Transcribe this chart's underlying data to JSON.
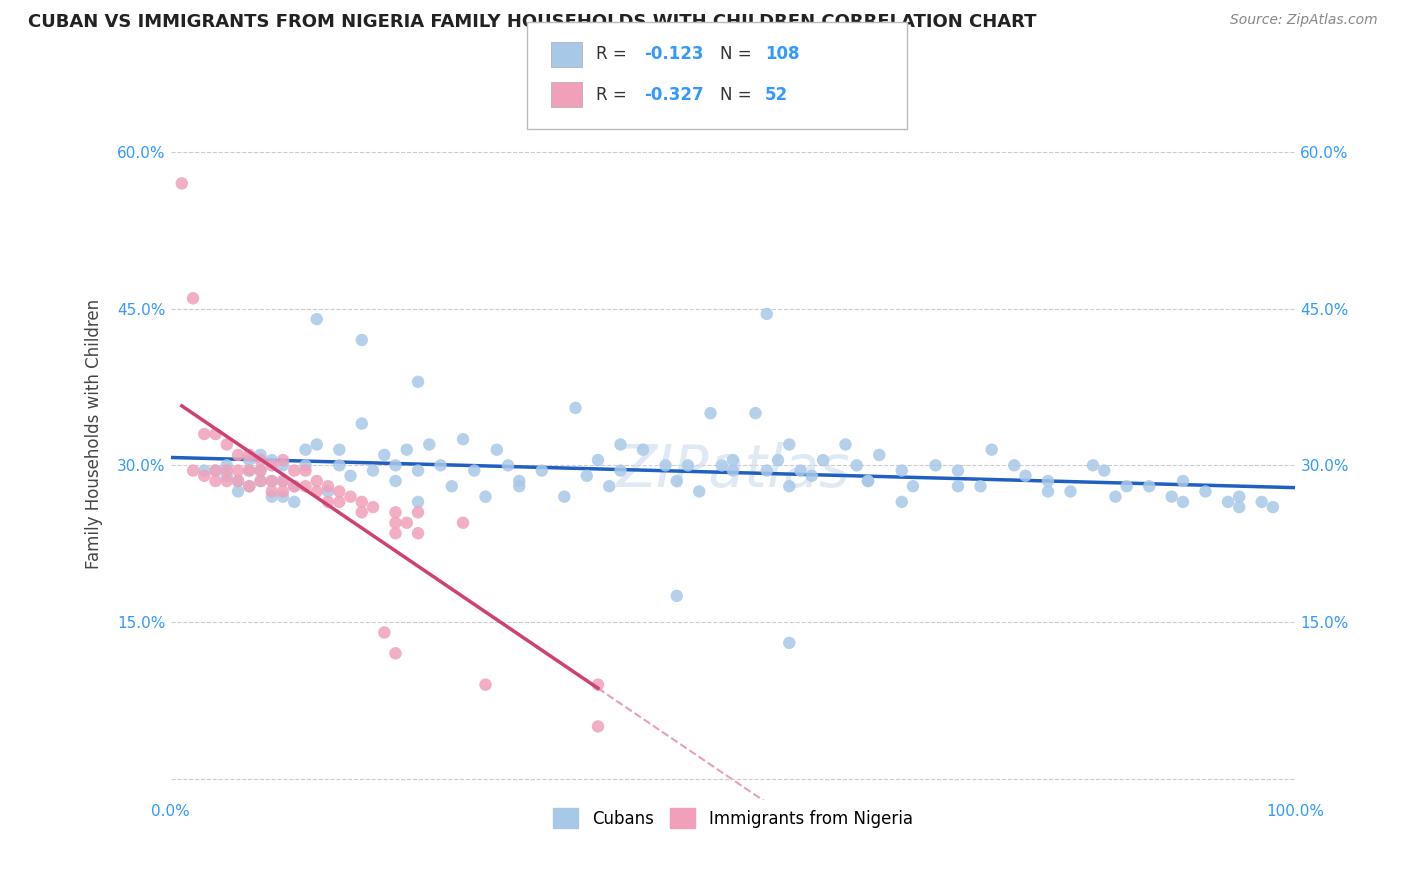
{
  "title": "CUBAN VS IMMIGRANTS FROM NIGERIA FAMILY HOUSEHOLDS WITH CHILDREN CORRELATION CHART",
  "source": "Source: ZipAtlas.com",
  "ylabel": "Family Households with Children",
  "xlim": [
    0.0,
    1.0
  ],
  "ylim": [
    -0.02,
    0.68
  ],
  "xticks": [
    0.0,
    0.1,
    0.2,
    0.3,
    0.4,
    0.5,
    0.6,
    0.7,
    0.8,
    0.9,
    1.0
  ],
  "xtick_labels": [
    "0.0%",
    "",
    "",
    "",
    "",
    "",
    "",
    "",
    "",
    "",
    "100.0%"
  ],
  "yticks": [
    0.0,
    0.15,
    0.3,
    0.45,
    0.6
  ],
  "ytick_labels": [
    "",
    "15.0%",
    "30.0%",
    "45.0%",
    "60.0%"
  ],
  "legend_cubans": "Cubans",
  "legend_nigeria": "Immigrants from Nigeria",
  "r_cubans": "-0.123",
  "n_cubans": "108",
  "r_nigeria": "-0.327",
  "n_nigeria": "52",
  "color_cubans": "#a8c8e8",
  "color_nigeria": "#f0a0b8",
  "line_color_cubans": "#2060c0",
  "line_color_nigeria": "#d04070",
  "line_color_dashed": "#e8a0b8",
  "watermark": "ZIPatlas",
  "cubans_x": [
    0.03,
    0.04,
    0.05,
    0.05,
    0.06,
    0.06,
    0.07,
    0.07,
    0.07,
    0.08,
    0.08,
    0.08,
    0.09,
    0.09,
    0.09,
    0.1,
    0.1,
    0.1,
    0.11,
    0.11,
    0.12,
    0.12,
    0.13,
    0.13,
    0.14,
    0.15,
    0.15,
    0.16,
    0.17,
    0.17,
    0.18,
    0.19,
    0.2,
    0.2,
    0.21,
    0.22,
    0.22,
    0.23,
    0.24,
    0.25,
    0.26,
    0.27,
    0.28,
    0.29,
    0.3,
    0.31,
    0.33,
    0.35,
    0.36,
    0.37,
    0.38,
    0.39,
    0.4,
    0.4,
    0.42,
    0.44,
    0.45,
    0.46,
    0.47,
    0.48,
    0.49,
    0.5,
    0.5,
    0.52,
    0.53,
    0.54,
    0.55,
    0.55,
    0.56,
    0.57,
    0.58,
    0.6,
    0.61,
    0.62,
    0.63,
    0.65,
    0.66,
    0.68,
    0.7,
    0.72,
    0.73,
    0.75,
    0.76,
    0.78,
    0.8,
    0.82,
    0.83,
    0.85,
    0.87,
    0.89,
    0.9,
    0.92,
    0.94,
    0.95,
    0.97,
    0.98,
    0.22,
    0.31,
    0.45,
    0.53,
    0.62,
    0.7,
    0.78,
    0.84,
    0.9,
    0.95,
    0.55,
    0.65
  ],
  "cubans_y": [
    0.295,
    0.295,
    0.29,
    0.3,
    0.275,
    0.285,
    0.28,
    0.295,
    0.305,
    0.285,
    0.295,
    0.31,
    0.27,
    0.285,
    0.305,
    0.27,
    0.285,
    0.3,
    0.265,
    0.28,
    0.3,
    0.315,
    0.44,
    0.32,
    0.275,
    0.3,
    0.315,
    0.29,
    0.34,
    0.42,
    0.295,
    0.31,
    0.285,
    0.3,
    0.315,
    0.295,
    0.38,
    0.32,
    0.3,
    0.28,
    0.325,
    0.295,
    0.27,
    0.315,
    0.3,
    0.28,
    0.295,
    0.27,
    0.355,
    0.29,
    0.305,
    0.28,
    0.295,
    0.32,
    0.315,
    0.3,
    0.285,
    0.3,
    0.275,
    0.35,
    0.3,
    0.295,
    0.305,
    0.35,
    0.445,
    0.305,
    0.28,
    0.32,
    0.295,
    0.29,
    0.305,
    0.32,
    0.3,
    0.285,
    0.31,
    0.295,
    0.28,
    0.3,
    0.295,
    0.28,
    0.315,
    0.3,
    0.29,
    0.285,
    0.275,
    0.3,
    0.295,
    0.28,
    0.28,
    0.27,
    0.285,
    0.275,
    0.265,
    0.27,
    0.265,
    0.26,
    0.265,
    0.285,
    0.175,
    0.295,
    0.285,
    0.28,
    0.275,
    0.27,
    0.265,
    0.26,
    0.13,
    0.265
  ],
  "nigeria_x": [
    0.01,
    0.02,
    0.02,
    0.03,
    0.03,
    0.04,
    0.04,
    0.04,
    0.05,
    0.05,
    0.05,
    0.06,
    0.06,
    0.06,
    0.07,
    0.07,
    0.07,
    0.08,
    0.08,
    0.08,
    0.09,
    0.09,
    0.09,
    0.1,
    0.1,
    0.1,
    0.11,
    0.11,
    0.12,
    0.12,
    0.13,
    0.13,
    0.14,
    0.14,
    0.15,
    0.15,
    0.16,
    0.17,
    0.17,
    0.18,
    0.19,
    0.2,
    0.2,
    0.2,
    0.2,
    0.21,
    0.22,
    0.22,
    0.26,
    0.28,
    0.38,
    0.38
  ],
  "nigeria_y": [
    0.57,
    0.46,
    0.295,
    0.33,
    0.29,
    0.33,
    0.295,
    0.285,
    0.32,
    0.295,
    0.285,
    0.31,
    0.295,
    0.285,
    0.295,
    0.31,
    0.28,
    0.295,
    0.305,
    0.285,
    0.3,
    0.285,
    0.275,
    0.305,
    0.285,
    0.275,
    0.295,
    0.28,
    0.295,
    0.28,
    0.285,
    0.275,
    0.28,
    0.265,
    0.275,
    0.265,
    0.27,
    0.265,
    0.255,
    0.26,
    0.14,
    0.255,
    0.245,
    0.235,
    0.12,
    0.245,
    0.255,
    0.235,
    0.245,
    0.09,
    0.09,
    0.05
  ]
}
